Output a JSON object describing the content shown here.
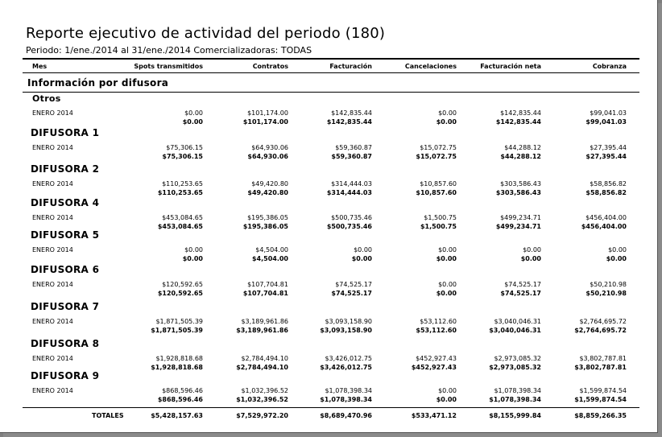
{
  "report": {
    "title": "Reporte ejecutivo de actividad del periodo (180)",
    "subtitle": "Periodo: 1/ene./2014 al 31/ene./2014 Comercializadoras: TODAS",
    "columns": [
      "Mes",
      "Spots transmitidos",
      "Contratos",
      "Facturación",
      "Cancelaciones",
      "Facturación neta",
      "Cobranza"
    ],
    "section_title": "Información por difusora",
    "groups": [
      {
        "name": "Otros",
        "month": "ENERO 2014",
        "values": [
          "$0.00",
          "$101,174.00",
          "$142,835.44",
          "$0.00",
          "$142,835.44",
          "$99,041.03"
        ],
        "totals": [
          "$0.00",
          "$101,174.00",
          "$142,835.44",
          "$0.00",
          "$142,835.44",
          "$99,041.03"
        ]
      },
      {
        "name": "DIFUSORA 1",
        "month": "ENERO 2014",
        "values": [
          "$75,306.15",
          "$64,930.06",
          "$59,360.87",
          "$15,072.75",
          "$44,288.12",
          "$27,395.44"
        ],
        "totals": [
          "$75,306.15",
          "$64,930.06",
          "$59,360.87",
          "$15,072.75",
          "$44,288.12",
          "$27,395.44"
        ]
      },
      {
        "name": "DIFUSORA 2",
        "month": "ENERO 2014",
        "values": [
          "$110,253.65",
          "$49,420.80",
          "$314,444.03",
          "$10,857.60",
          "$303,586.43",
          "$58,856.82"
        ],
        "totals": [
          "$110,253.65",
          "$49,420.80",
          "$314,444.03",
          "$10,857.60",
          "$303,586.43",
          "$58,856.82"
        ]
      },
      {
        "name": "DIFUSORA 4",
        "month": "ENERO 2014",
        "values": [
          "$453,084.65",
          "$195,386.05",
          "$500,735.46",
          "$1,500.75",
          "$499,234.71",
          "$456,404.00"
        ],
        "totals": [
          "$453,084.65",
          "$195,386.05",
          "$500,735.46",
          "$1,500.75",
          "$499,234.71",
          "$456,404.00"
        ]
      },
      {
        "name": "DIFUSORA 5",
        "month": "ENERO 2014",
        "values": [
          "$0.00",
          "$4,504.00",
          "$0.00",
          "$0.00",
          "$0.00",
          "$0.00"
        ],
        "totals": [
          "$0.00",
          "$4,504.00",
          "$0.00",
          "$0.00",
          "$0.00",
          "$0.00"
        ]
      },
      {
        "name": "DIFUSORA 6",
        "month": "ENERO 2014",
        "values": [
          "$120,592.65",
          "$107,704.81",
          "$74,525.17",
          "$0.00",
          "$74,525.17",
          "$50,210.98"
        ],
        "totals": [
          "$120,592.65",
          "$107,704.81",
          "$74,525.17",
          "$0.00",
          "$74,525.17",
          "$50,210.98"
        ]
      },
      {
        "name": "DIFUSORA 7",
        "month": "ENERO 2014",
        "values": [
          "$1,871,505.39",
          "$3,189,961.86",
          "$3,093,158.90",
          "$53,112.60",
          "$3,040,046.31",
          "$2,764,695.72"
        ],
        "totals": [
          "$1,871,505.39",
          "$3,189,961.86",
          "$3,093,158.90",
          "$53,112.60",
          "$3,040,046.31",
          "$2,764,695.72"
        ]
      },
      {
        "name": "DIFUSORA 8",
        "month": "ENERO 2014",
        "values": [
          "$1,928,818.68",
          "$2,784,494.10",
          "$3,426,012.75",
          "$452,927.43",
          "$2,973,085.32",
          "$3,802,787.81"
        ],
        "totals": [
          "$1,928,818.68",
          "$2,784,494.10",
          "$3,426,012.75",
          "$452,927.43",
          "$2,973,085.32",
          "$3,802,787.81"
        ]
      },
      {
        "name": "DIFUSORA 9",
        "month": "ENERO 2014",
        "values": [
          "$868,596.46",
          "$1,032,396.52",
          "$1,078,398.34",
          "$0.00",
          "$1,078,398.34",
          "$1,599,874.54"
        ],
        "totals": [
          "$868,596.46",
          "$1,032,396.52",
          "$1,078,398.34",
          "$0.00",
          "$1,078,398.34",
          "$1,599,874.54"
        ]
      }
    ],
    "totals_label": "TOTALES",
    "totals": [
      "$5,428,157.63",
      "$7,529,972.20",
      "$8,689,470.96",
      "$533,471.12",
      "$8,155,999.84",
      "$8,859,266.35"
    ]
  }
}
